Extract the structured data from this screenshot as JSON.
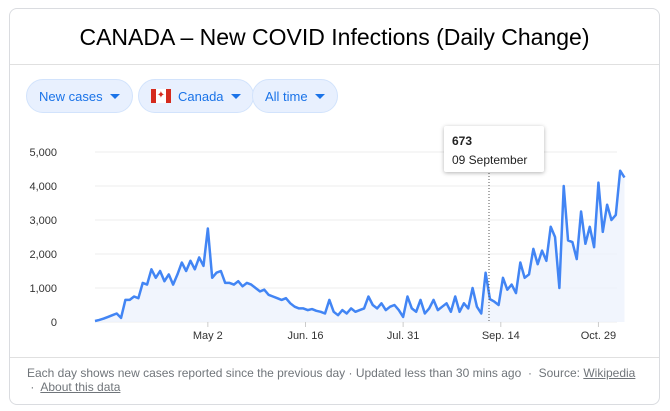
{
  "title": "CANADA – New COVID Infections (Daily Change)",
  "filters": {
    "metric": "New cases",
    "region": "Canada",
    "range": "All time"
  },
  "tooltip": {
    "value": "673",
    "date": "09 September"
  },
  "footer": {
    "note": "Each day shows new cases reported since the previous day · Updated less than 30 mins ago",
    "source_label": "Source:",
    "source_link": "Wikipedia",
    "about_link": "About this data"
  },
  "colors": {
    "line": "#4285f4",
    "accent": "#1a73e8",
    "flag_red": "#d52b1e"
  },
  "chart_data": {
    "type": "line",
    "title": "CANADA – New COVID Infections (Daily Change)",
    "xlabel": "",
    "ylabel": "",
    "ylim": [
      0,
      5000
    ],
    "yticks": [
      "0",
      "1,000",
      "2,000",
      "3,000",
      "4,000",
      "5,000"
    ],
    "ytick_values": [
      0,
      1000,
      2000,
      3000,
      4000,
      5000
    ],
    "xticks": [
      "May 2",
      "Jun. 16",
      "Jul. 31",
      "Sep. 14",
      "Oct. 29"
    ],
    "xtick_days": [
      52,
      97,
      142,
      187,
      232
    ],
    "start_date": "2020-03-11",
    "step_days": 2,
    "grid": true,
    "values": [
      30,
      60,
      100,
      150,
      200,
      250,
      120,
      650,
      650,
      750,
      700,
      1150,
      1100,
      1550,
      1300,
      1500,
      1200,
      1400,
      1100,
      1400,
      1750,
      1500,
      1800,
      1550,
      1900,
      1650,
      2750,
      1300,
      1450,
      1500,
      1150,
      1150,
      1100,
      1200,
      1050,
      1150,
      1100,
      1000,
      900,
      950,
      800,
      750,
      700,
      650,
      700,
      550,
      450,
      400,
      400,
      350,
      380,
      330,
      300,
      250,
      650,
      300,
      200,
      350,
      250,
      400,
      300,
      350,
      400,
      750,
      500,
      400,
      550,
      350,
      450,
      500,
      350,
      150,
      750,
      400,
      300,
      650,
      250,
      400,
      650,
      350,
      450,
      550,
      300,
      750,
      300,
      550,
      400,
      1000,
      450,
      250,
      1450,
      673,
      600,
      500,
      1300,
      950,
      1100,
      850,
      1750,
      1300,
      1400,
      2150,
      1700,
      2100,
      1800,
      2800,
      2500,
      1000,
      4000,
      2400,
      2350,
      1850,
      3250,
      2300,
      2800,
      2200,
      4100,
      2650,
      3450,
      3000,
      3150,
      4450,
      4250
    ],
    "highlight": {
      "date": "09 September",
      "value": 673
    }
  }
}
